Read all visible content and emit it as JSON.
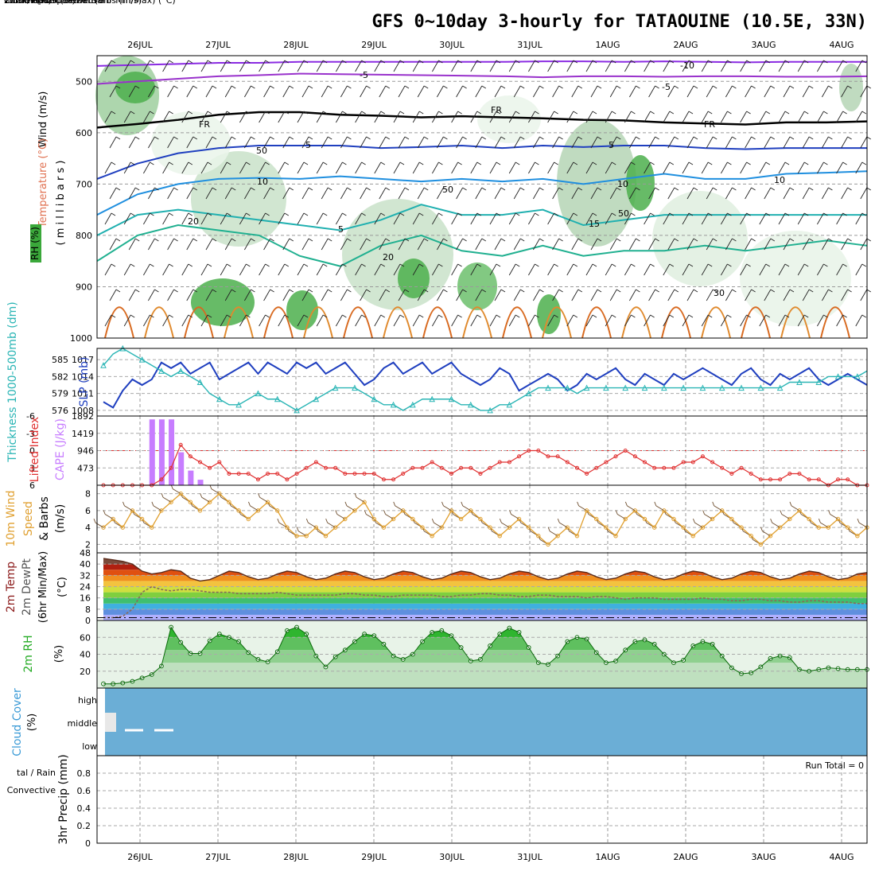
{
  "title": "GFS 0~10day 3-hourly for TATAOUINE (10.5E, 33N)",
  "dates": [
    "26JUL",
    "27JUL",
    "28JUL",
    "29JUL",
    "30JUL",
    "31JUL",
    "1AUG",
    "2AUG",
    "3AUG",
    "4AUG"
  ],
  "colors": {
    "gridline": "#999999",
    "panel_border": "#000000",
    "rh_green": "#2fb52f",
    "cloud_blue": "#6baed6",
    "slp": "#1f3fbf",
    "thickness": "#2ab5b5",
    "lifted": "#e03030",
    "cape": "#c77dff",
    "wind": "#e0a030",
    "rh2m": "#22cc22"
  },
  "chart_data": [
    {
      "panel": "upper-air",
      "type": "heatmap",
      "ylabel_parts": [
        "Temperature (°C)",
        "Wind (m/s)",
        "RH (%)",
        "( m i l l i b a r s )"
      ],
      "y_ticks": [
        "500",
        "600",
        "700",
        "800",
        "900",
        "1000"
      ],
      "ylim": [
        1000,
        450
      ],
      "contour_labels": [
        "-10",
        "-5",
        "-5",
        "FR",
        "FR",
        "FR",
        "5",
        "5",
        "10",
        "10",
        "15",
        "20",
        "20",
        "5",
        "50",
        "50",
        "50",
        "30",
        "10"
      ],
      "isotherms": [
        {
          "label": "-10",
          "color": "#8a2be2",
          "p": [
            470,
            468,
            466,
            464,
            464,
            462,
            462,
            462,
            462,
            462,
            462,
            461,
            461,
            462,
            461,
            462,
            463,
            462,
            462,
            462
          ]
        },
        {
          "label": "-5",
          "color": "#9932cc",
          "p": [
            505,
            500,
            495,
            490,
            488,
            485,
            486,
            487,
            488,
            489,
            490,
            492,
            490,
            490,
            491,
            490,
            490,
            491,
            491,
            490
          ]
        },
        {
          "label": "FR",
          "color": "#000000",
          "p": [
            590,
            583,
            575,
            565,
            560,
            560,
            565,
            567,
            570,
            568,
            570,
            572,
            575,
            576,
            580,
            582,
            584,
            580,
            580,
            578
          ]
        },
        {
          "label": "5",
          "color": "#1f3fbf",
          "p": [
            690,
            660,
            640,
            630,
            625,
            625,
            625,
            630,
            628,
            625,
            630,
            625,
            628,
            625,
            625,
            630,
            632,
            630,
            630,
            630
          ]
        },
        {
          "label": "10",
          "color": "#1f8fdf",
          "p": [
            760,
            720,
            700,
            690,
            688,
            690,
            685,
            690,
            695,
            690,
            695,
            690,
            700,
            690,
            680,
            690,
            690,
            680,
            678,
            675
          ]
        },
        {
          "label": "15",
          "color": "#20b0b0",
          "p": [
            800,
            760,
            750,
            760,
            770,
            780,
            790,
            770,
            740,
            760,
            760,
            750,
            780,
            770,
            760,
            760,
            760,
            760,
            760,
            760
          ]
        },
        {
          "label": "20",
          "color": "#20b090",
          "p": [
            850,
            800,
            780,
            790,
            800,
            840,
            860,
            820,
            800,
            830,
            840,
            820,
            840,
            830,
            830,
            820,
            830,
            820,
            810,
            820
          ]
        }
      ]
    },
    {
      "panel": "thickness-slp",
      "type": "line",
      "ylabel_left": "Thickness 1000-500mb (dm)",
      "ylabel_right": "SLP (mb)",
      "y_ticks_left": [
        "576",
        "579",
        "582",
        "585"
      ],
      "y_ticks_right": [
        "1008",
        "1011",
        "1014",
        "1017"
      ],
      "ylim_left": [
        575,
        587
      ],
      "series": [
        {
          "name": "SLP (mb)",
          "color": "#1f3fbf",
          "values": [
            1009,
            1008,
            1011,
            1013,
            1012,
            1013,
            1016,
            1015,
            1016,
            1014,
            1015,
            1016,
            1013,
            1014,
            1015,
            1016,
            1014,
            1016,
            1015,
            1014,
            1016,
            1015,
            1016,
            1014,
            1015,
            1016,
            1014,
            1012,
            1013,
            1015,
            1016,
            1014,
            1015,
            1016,
            1014,
            1015,
            1016,
            1014,
            1013,
            1012,
            1013,
            1015,
            1014,
            1011,
            1012,
            1013,
            1014,
            1013,
            1011,
            1012,
            1014,
            1013,
            1014,
            1015,
            1013,
            1012,
            1014,
            1013,
            1012,
            1014,
            1013,
            1014,
            1015,
            1014,
            1013,
            1012,
            1014,
            1015,
            1013,
            1012,
            1014,
            1013,
            1014,
            1015,
            1013,
            1012,
            1013,
            1014,
            1013,
            1012
          ]
        },
        {
          "name": "Thickness (dm)",
          "color": "#2ab5b5",
          "values": [
            584,
            586,
            587,
            586,
            585,
            584,
            583,
            582,
            583,
            582,
            581,
            579,
            578,
            577,
            577,
            578,
            579,
            578,
            578,
            577,
            576,
            577,
            578,
            579,
            580,
            580,
            580,
            579,
            578,
            577,
            577,
            576,
            577,
            578,
            578,
            578,
            578,
            577,
            577,
            576,
            576,
            577,
            577,
            578,
            579,
            580,
            580,
            580,
            580,
            579,
            580,
            580,
            580,
            580,
            580,
            580,
            580,
            580,
            580,
            580,
            580,
            580,
            580,
            580,
            580,
            580,
            580,
            580,
            580,
            580,
            580,
            581,
            581,
            581,
            581,
            582,
            582,
            582,
            582,
            583
          ]
        }
      ]
    },
    {
      "panel": "lifted-cape",
      "type": "bar",
      "ylabel_left": "Lifted Index",
      "ylabel_right": "CAPE (J/kg)",
      "y_ticks_left": [
        "-6",
        "-3",
        "0",
        "3",
        "6"
      ],
      "y_ticks_right": [
        "473",
        "946",
        "1419",
        "1892"
      ],
      "series": [
        {
          "name": "Lifted Index",
          "color": "#e03030",
          "values": [
            6,
            6,
            6,
            6,
            6,
            6,
            5,
            3,
            -1,
            1,
            2,
            3,
            2,
            4,
            4,
            4,
            5,
            4,
            4,
            5,
            4,
            3,
            2,
            3,
            3,
            4,
            4,
            4,
            4,
            5,
            5,
            4,
            3,
            3,
            2,
            3,
            4,
            3,
            3,
            4,
            3,
            2,
            2,
            1,
            0,
            0,
            1,
            1,
            2,
            3,
            4,
            3,
            2,
            1,
            0,
            1,
            2,
            3,
            3,
            3,
            2,
            2,
            1,
            2,
            3,
            4,
            3,
            4,
            5,
            5,
            5,
            4,
            4,
            5,
            5,
            6,
            5,
            5,
            6,
            6
          ]
        },
        {
          "name": "CAPE (J/kg)",
          "color": "#c77dff",
          "values": [
            0,
            0,
            0,
            0,
            0,
            1800,
            1800,
            1800,
            900,
            400,
            150,
            0,
            0,
            0,
            0,
            0,
            0,
            0,
            0,
            0,
            0,
            0,
            0,
            0,
            0,
            0,
            0,
            0,
            0,
            0,
            0,
            0,
            0,
            0,
            0,
            0,
            0,
            0,
            0,
            0,
            0,
            0,
            0,
            0,
            0,
            0,
            0,
            0,
            0,
            0,
            0,
            0,
            0,
            0,
            0,
            0,
            0,
            0,
            0,
            0,
            0,
            0,
            0,
            0,
            0,
            0,
            0,
            0,
            0,
            0,
            0,
            0,
            0,
            0,
            0,
            0,
            0,
            0,
            0,
            0
          ]
        }
      ]
    },
    {
      "panel": "wind",
      "type": "line",
      "ylabel": "10m Wind Speed & Barbs (m/s)",
      "y_ticks": [
        "2",
        "4",
        "6",
        "8"
      ],
      "ylim": [
        1,
        9
      ],
      "series": [
        {
          "name": "10m Wind Speed",
          "color": "#e0a030",
          "values": [
            4,
            5,
            4,
            6,
            5,
            4,
            6,
            7,
            8,
            7,
            6,
            7,
            8,
            7,
            6,
            5,
            6,
            7,
            6,
            4,
            3,
            3,
            4,
            3,
            4,
            5,
            6,
            7,
            5,
            4,
            5,
            6,
            5,
            4,
            3,
            4,
            6,
            5,
            6,
            5,
            4,
            3,
            4,
            5,
            4,
            3,
            2,
            3,
            4,
            3,
            6,
            5,
            4,
            3,
            5,
            6,
            5,
            4,
            6,
            5,
            4,
            3,
            4,
            5,
            6,
            5,
            4,
            3,
            2,
            3,
            4,
            5,
            6,
            5,
            4,
            4,
            5,
            4,
            3,
            4
          ]
        }
      ]
    },
    {
      "panel": "temp-dewpt",
      "type": "area",
      "ylabel": "2m Temp 2m DewPt (6hr Min/Max) (°C)",
      "y_ticks": [
        "0",
        "8",
        "16",
        "24",
        "32",
        "40",
        "48"
      ],
      "ylim": [
        0,
        48
      ],
      "series": [
        {
          "name": "2m Temp",
          "color": "#8b1a1a",
          "values": [
            44,
            43,
            42,
            40,
            35,
            33,
            34,
            36,
            35,
            30,
            28,
            29,
            32,
            35,
            34,
            31,
            29,
            30,
            33,
            35,
            34,
            31,
            29,
            30,
            33,
            35,
            34,
            31,
            29,
            30,
            33,
            35,
            34,
            31,
            29,
            30,
            33,
            35,
            34,
            31,
            29,
            30,
            33,
            35,
            34,
            31,
            29,
            30,
            33,
            35,
            34,
            31,
            29,
            30,
            33,
            35,
            34,
            31,
            29,
            30,
            33,
            35,
            34,
            31,
            29,
            30,
            33,
            35,
            34,
            31,
            29,
            30,
            33,
            35,
            34,
            31,
            29,
            30,
            33,
            34
          ]
        },
        {
          "name": "2m DewPt",
          "color": "#777777",
          "values": [
            2,
            2,
            3,
            8,
            20,
            24,
            22,
            21,
            22,
            22,
            21,
            20,
            20,
            20,
            19,
            19,
            19,
            19,
            20,
            19,
            18,
            18,
            18,
            18,
            18,
            19,
            19,
            18,
            18,
            17,
            17,
            18,
            18,
            18,
            18,
            17,
            17,
            18,
            18,
            19,
            19,
            18,
            18,
            17,
            17,
            18,
            18,
            17,
            17,
            17,
            16,
            17,
            17,
            16,
            15,
            16,
            16,
            16,
            15,
            15,
            15,
            15,
            16,
            15,
            15,
            14,
            14,
            15,
            15,
            14,
            14,
            13,
            13,
            14,
            14,
            13,
            13,
            13,
            12,
            12
          ]
        }
      ]
    },
    {
      "panel": "rh2m",
      "type": "area",
      "ylabel": "2m RH (%)",
      "y_ticks": [
        "20",
        "40",
        "60"
      ],
      "ylim": [
        0,
        80
      ],
      "series": [
        {
          "name": "2m RH",
          "color": "#22cc22",
          "values": [
            5,
            5,
            6,
            8,
            12,
            16,
            26,
            72,
            54,
            41,
            41,
            56,
            64,
            60,
            55,
            42,
            34,
            31,
            43,
            68,
            72,
            64,
            38,
            25,
            37,
            45,
            55,
            64,
            62,
            52,
            38,
            34,
            40,
            55,
            66,
            68,
            62,
            48,
            32,
            34,
            50,
            64,
            71,
            66,
            48,
            30,
            28,
            38,
            55,
            60,
            58,
            42,
            30,
            32,
            45,
            55,
            57,
            52,
            40,
            30,
            33,
            50,
            55,
            52,
            38,
            24,
            17,
            18,
            25,
            35,
            38,
            36,
            22,
            20,
            22,
            24,
            23,
            22,
            22,
            22
          ]
        }
      ]
    },
    {
      "panel": "cloud",
      "type": "heatmap",
      "ylabel": "Cloud Cover (%)",
      "y_ticks": [
        "high",
        "middle",
        "low"
      ]
    },
    {
      "panel": "precip",
      "type": "bar",
      "ylabel_left": "Total / Rain Convective",
      "ylabel": "3hr Precip (mm)",
      "y_ticks": [
        "0",
        "0.2",
        "0.4",
        "0.6",
        "0.8"
      ],
      "ylim": [
        0,
        1
      ],
      "annotation": "Run Total = 0",
      "series": [
        {
          "name": "Total / Rain",
          "color": "#22aa22",
          "values": []
        },
        {
          "name": "Convective",
          "color": "#e03030",
          "values": []
        }
      ]
    }
  ]
}
